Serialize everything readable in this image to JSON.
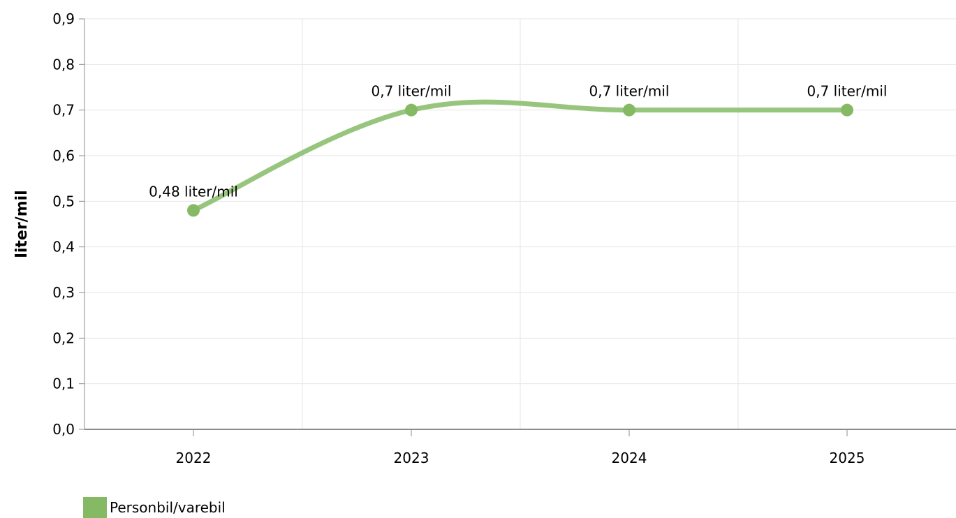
{
  "chart_data": {
    "type": "line",
    "title": "",
    "xlabel": "",
    "ylabel": "liter/mil",
    "categories": [
      "2022",
      "2023",
      "2024",
      "2025"
    ],
    "ylim": [
      0,
      0.9
    ],
    "y_ticks": [
      "0,0",
      "0,1",
      "0,2",
      "0,3",
      "0,4",
      "0,5",
      "0,6",
      "0,7",
      "0,8",
      "0,9"
    ],
    "grid": true,
    "smooth": true,
    "legend_position": "bottom-left",
    "series": [
      {
        "name": "Personbil/varebil",
        "color": "#85b963",
        "values": [
          0.48,
          0.7,
          0.7,
          0.7
        ],
        "data_labels": [
          "0,48 liter/mil",
          "0,7 liter/mil",
          "0,7 liter/mil",
          "0,7 liter/mil"
        ]
      }
    ]
  }
}
